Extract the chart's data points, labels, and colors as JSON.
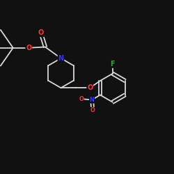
{
  "background": "#111111",
  "bond_color": "#d8d8d8",
  "atom_colors": {
    "O": "#ff3333",
    "N": "#3333ff",
    "F": "#33aa33",
    "C": "#d8d8d8"
  },
  "scale": 1.0
}
